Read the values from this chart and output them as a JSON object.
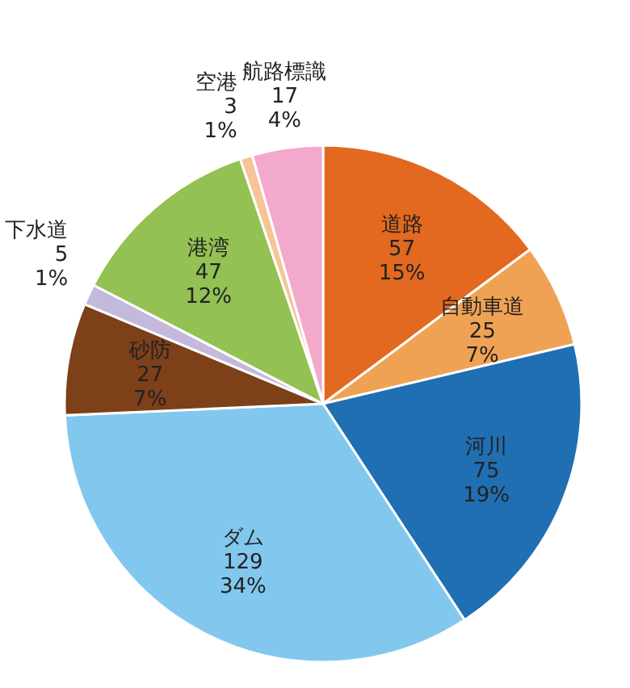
{
  "chart_data": {
    "type": "pie",
    "categories": [
      "道路",
      "自動車道",
      "河川",
      "ダム",
      "砂防",
      "下水道",
      "港湾",
      "空港",
      "航路標識"
    ],
    "values": [
      57,
      25,
      75,
      129,
      27,
      5,
      47,
      3,
      17
    ],
    "value_labels": [
      "57\n15%",
      "25\n7%",
      "75\n19%",
      "129\n34%",
      "27\n7%",
      "5\n1%",
      "47\n12%",
      "3\n1%",
      "17\n4%"
    ],
    "colors": [
      "#e2691f",
      "#f0a254",
      "#1f6fb2",
      "#82c8ee",
      "#7d4019",
      "#c3b9dc",
      "#93c153",
      "#f6c497",
      "#f2a9cb"
    ]
  }
}
